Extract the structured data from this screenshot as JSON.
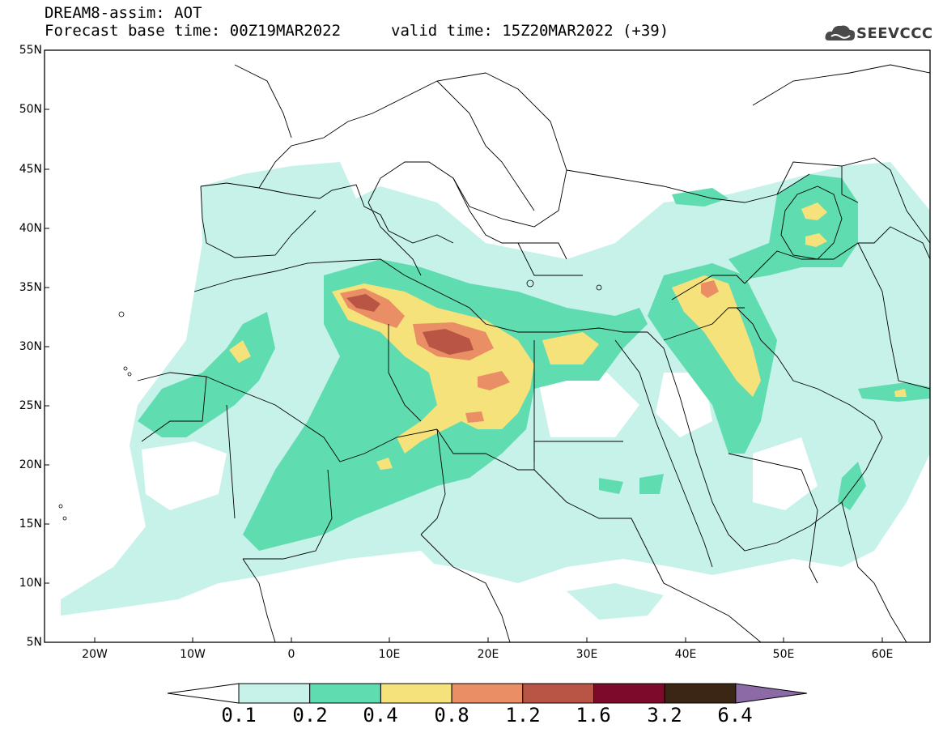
{
  "header": {
    "model_title": "DREAM8-assim: AOT",
    "base_time": "Forecast base time: 00Z19MAR2022",
    "valid_time": "valid time: 15Z20MAR2022 (+39)"
  },
  "logo": {
    "text": "SEEVCCC",
    "icon": "cloud-logo-icon"
  },
  "map": {
    "lat_labels": [
      "55N",
      "50N",
      "45N",
      "40N",
      "35N",
      "30N",
      "25N",
      "20N",
      "15N",
      "10N",
      "5N"
    ],
    "lon_labels": [
      "20W",
      "10W",
      "0",
      "10E",
      "20E",
      "30E",
      "40E",
      "50E",
      "60E"
    ]
  },
  "colorbar": {
    "labels": [
      "0.1",
      "0.2",
      "0.4",
      "0.8",
      "1.2",
      "1.6",
      "3.2",
      "6.4"
    ],
    "colors": [
      "#ffffff",
      "#c6f2e9",
      "#5fdcb0",
      "#f6e27a",
      "#ea8e65",
      "#b85545",
      "#7d0a2a",
      "#3b2615",
      "#8c6aa6"
    ]
  }
}
